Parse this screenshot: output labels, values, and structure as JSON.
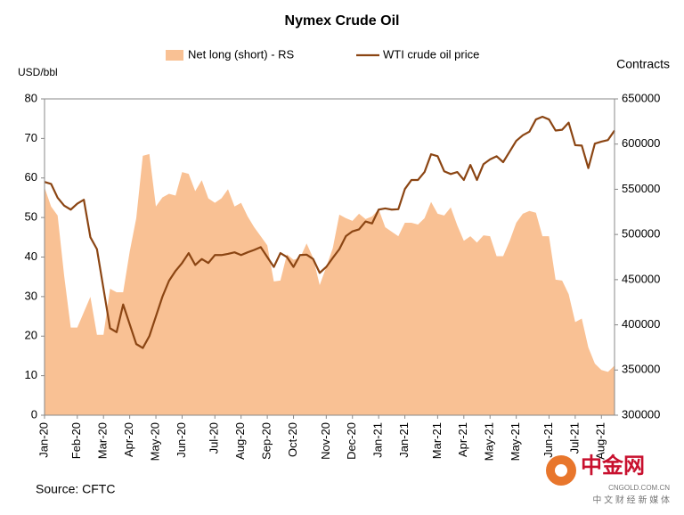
{
  "chart_data": {
    "type": "area-line",
    "title": "Nymex Crude Oil",
    "y_label": "USD/bbl",
    "y2_label": "Contracts",
    "source": "Source: CFTC",
    "categories": [
      "Jan-20",
      null,
      null,
      null,
      null,
      "Feb-20",
      null,
      null,
      null,
      "Mar-20",
      null,
      null,
      null,
      "Apr-20",
      null,
      null,
      null,
      "May-20",
      null,
      null,
      null,
      "Jun-20",
      null,
      null,
      null,
      null,
      "Jul-20",
      null,
      null,
      null,
      "Aug-20",
      null,
      null,
      null,
      "Sep-20",
      null,
      null,
      null,
      "Oct-20",
      null,
      null,
      null,
      null,
      "Nov-20",
      null,
      null,
      null,
      "Dec-20",
      null,
      null,
      null,
      "Jan-21",
      null,
      null,
      null,
      "Jan-21",
      null,
      null,
      null,
      null,
      "Mar-21",
      null,
      null,
      null,
      "Apr-21",
      null,
      null,
      null,
      "May-21",
      null,
      null,
      null,
      "May-21",
      null,
      null,
      null,
      null,
      "Jun-21",
      null,
      null,
      null,
      "Jul-21",
      null,
      null,
      null,
      "Aug-21",
      null,
      null
    ],
    "series": [
      {
        "name": "Net long (short) - RS",
        "color": "#f9c194",
        "axis": "y2",
        "kind": "area",
        "values": [
          552000,
          531000,
          521000,
          454000,
          397000,
          397000,
          414000,
          431000,
          389000,
          389000,
          440000,
          436000,
          436000,
          481000,
          518000,
          587000,
          589000,
          531000,
          541000,
          545000,
          543000,
          569000,
          567000,
          548000,
          560000,
          540000,
          535000,
          540000,
          550000,
          531000,
          535000,
          520000,
          508000,
          498000,
          488000,
          448000,
          449000,
          478000,
          472000,
          474000,
          490000,
          474000,
          444000,
          464000,
          485000,
          522000,
          518000,
          515000,
          523000,
          517000,
          520000,
          528000,
          508000,
          503000,
          498000,
          513000,
          513000,
          511000,
          518000,
          536000,
          523000,
          521000,
          530000,
          510000,
          493000,
          498000,
          491000,
          499000,
          498000,
          476000,
          476000,
          493000,
          513000,
          523000,
          526000,
          524000,
          498000,
          498000,
          450000,
          449000,
          434000,
          403000,
          407000,
          375000,
          357000,
          350000,
          348000,
          355000
        ]
      },
      {
        "name": "WTI crude oil price",
        "color": "#8b4513",
        "axis": "y",
        "kind": "line",
        "values": [
          59,
          58.5,
          55,
          53,
          52,
          53.5,
          54.5,
          45,
          42,
          32,
          22,
          21,
          28,
          23,
          18,
          17,
          20,
          25,
          30,
          34,
          36.5,
          38.5,
          41,
          38,
          39.5,
          38.5,
          40.5,
          40.5,
          40.8,
          41.2,
          40.5,
          41.2,
          41.8,
          42.5,
          40,
          37.5,
          41,
          40,
          37.5,
          40.5,
          40.6,
          39.5,
          36,
          37.5,
          39.8,
          42,
          45.3,
          46.5,
          47,
          49,
          48.5,
          52,
          52.3,
          52,
          52.1,
          57.2,
          59.5,
          59.5,
          61.5,
          66,
          65.5,
          61.7,
          61,
          61.5,
          59.5,
          63.3,
          59.5,
          63.5,
          64.7,
          65.5,
          64,
          66.7,
          69.4,
          70.8,
          71.7,
          74.8,
          75.5,
          74.8,
          72,
          72.2,
          74,
          68.3,
          68.2,
          62.5,
          68.7,
          69.2,
          69.6,
          72
        ]
      }
    ],
    "ylim": [
      0,
      80
    ],
    "yticks": [
      0,
      10,
      20,
      30,
      40,
      50,
      60,
      70,
      80
    ],
    "y2lim": [
      300000,
      650000
    ],
    "y2ticks": [
      300000,
      350000,
      400000,
      450000,
      500000,
      550000,
      600000,
      650000
    ],
    "grid": false,
    "legend": "top",
    "watermark": {
      "logo": "中金网",
      "url": "CNGOLD.COM.CN",
      "tagline": "中 文 财 经 新 媒 体"
    }
  }
}
